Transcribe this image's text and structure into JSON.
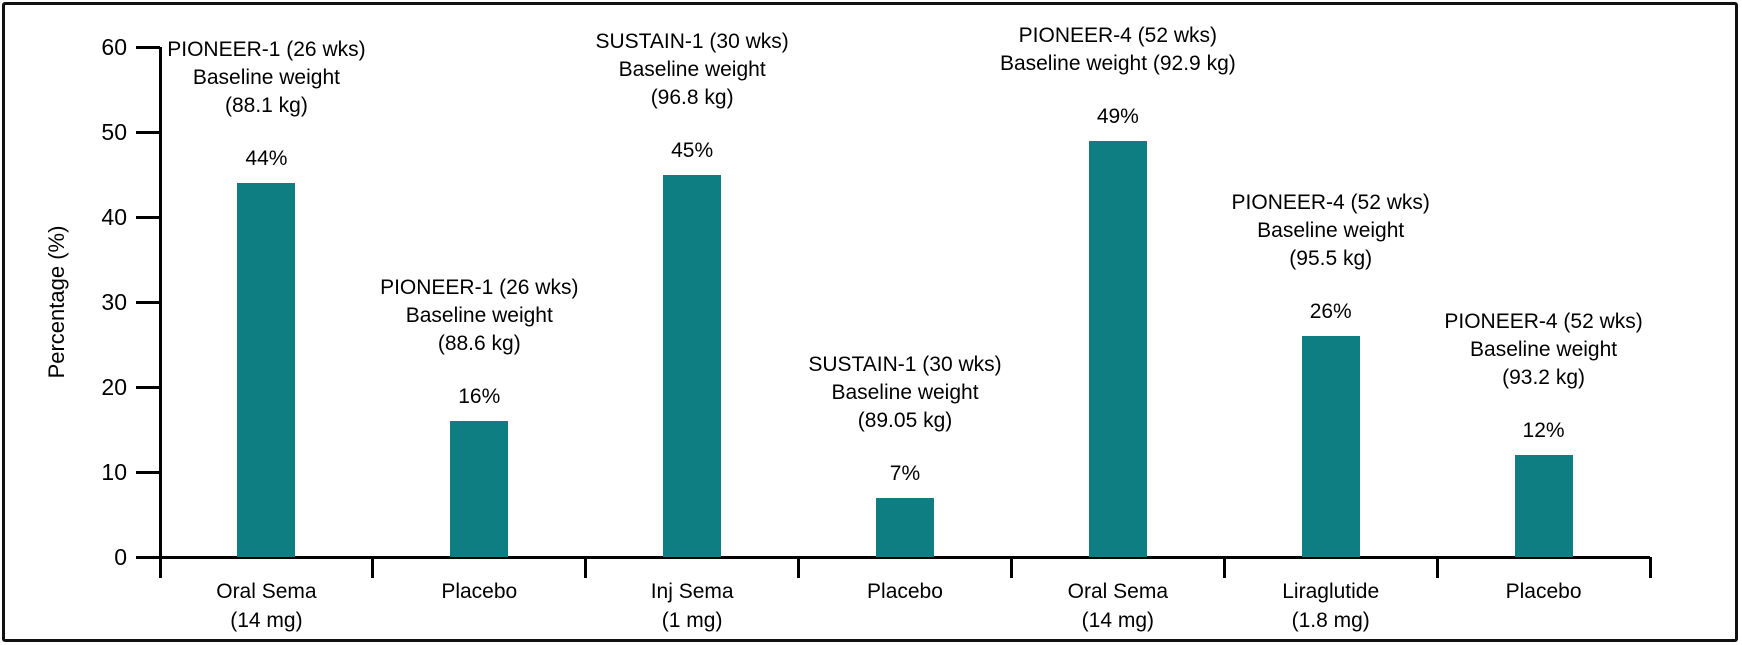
{
  "chart_data": {
    "type": "bar",
    "title": "",
    "xlabel": "",
    "ylabel": "Percentage (%)",
    "ylim": [
      0,
      60
    ],
    "yticks": [
      0,
      10,
      20,
      30,
      40,
      50,
      60
    ],
    "grid": false,
    "legend": false,
    "bar_color": "#0e7e82",
    "axis_color": "#000000",
    "categories": [
      "Oral Sema (14 mg)",
      "Placebo",
      "Inj Sema (1 mg)",
      "Placebo",
      "Oral Sema (14 mg)",
      "Liraglutide (1.8 mg)",
      "Placebo"
    ],
    "category_lines": [
      [
        "Oral Sema",
        "(14 mg)"
      ],
      [
        "Placebo"
      ],
      [
        "Inj Sema",
        "(1 mg)"
      ],
      [
        "Placebo"
      ],
      [
        "Oral Sema",
        "(14 mg)"
      ],
      [
        "Liraglutide",
        "(1.8 mg)"
      ],
      [
        "Placebo"
      ]
    ],
    "values": [
      44,
      16,
      45,
      7,
      49,
      26,
      12
    ],
    "value_labels": [
      "44%",
      "16%",
      "45%",
      "7%",
      "49%",
      "26%",
      "12%"
    ],
    "annotations": [
      [
        "PIONEER-1 (26 wks)",
        "Baseline weight",
        "(88.1 kg)"
      ],
      [
        "PIONEER-1 (26 wks)",
        "Baseline weight",
        "(88.6 kg)"
      ],
      [
        "SUSTAIN-1 (30 wks)",
        "Baseline weight",
        "(96.8 kg)"
      ],
      [
        "SUSTAIN-1 (30 wks)",
        "Baseline weight",
        "(89.05 kg)"
      ],
      [
        "PIONEER-4 (52 wks)",
        "Baseline weight (92.9 kg)"
      ],
      [
        "PIONEER-4 (52 wks)",
        "Baseline weight",
        "(95.5 kg)"
      ],
      [
        "PIONEER-4 (52 wks)",
        "Baseline weight",
        "(93.2 kg)"
      ]
    ]
  }
}
